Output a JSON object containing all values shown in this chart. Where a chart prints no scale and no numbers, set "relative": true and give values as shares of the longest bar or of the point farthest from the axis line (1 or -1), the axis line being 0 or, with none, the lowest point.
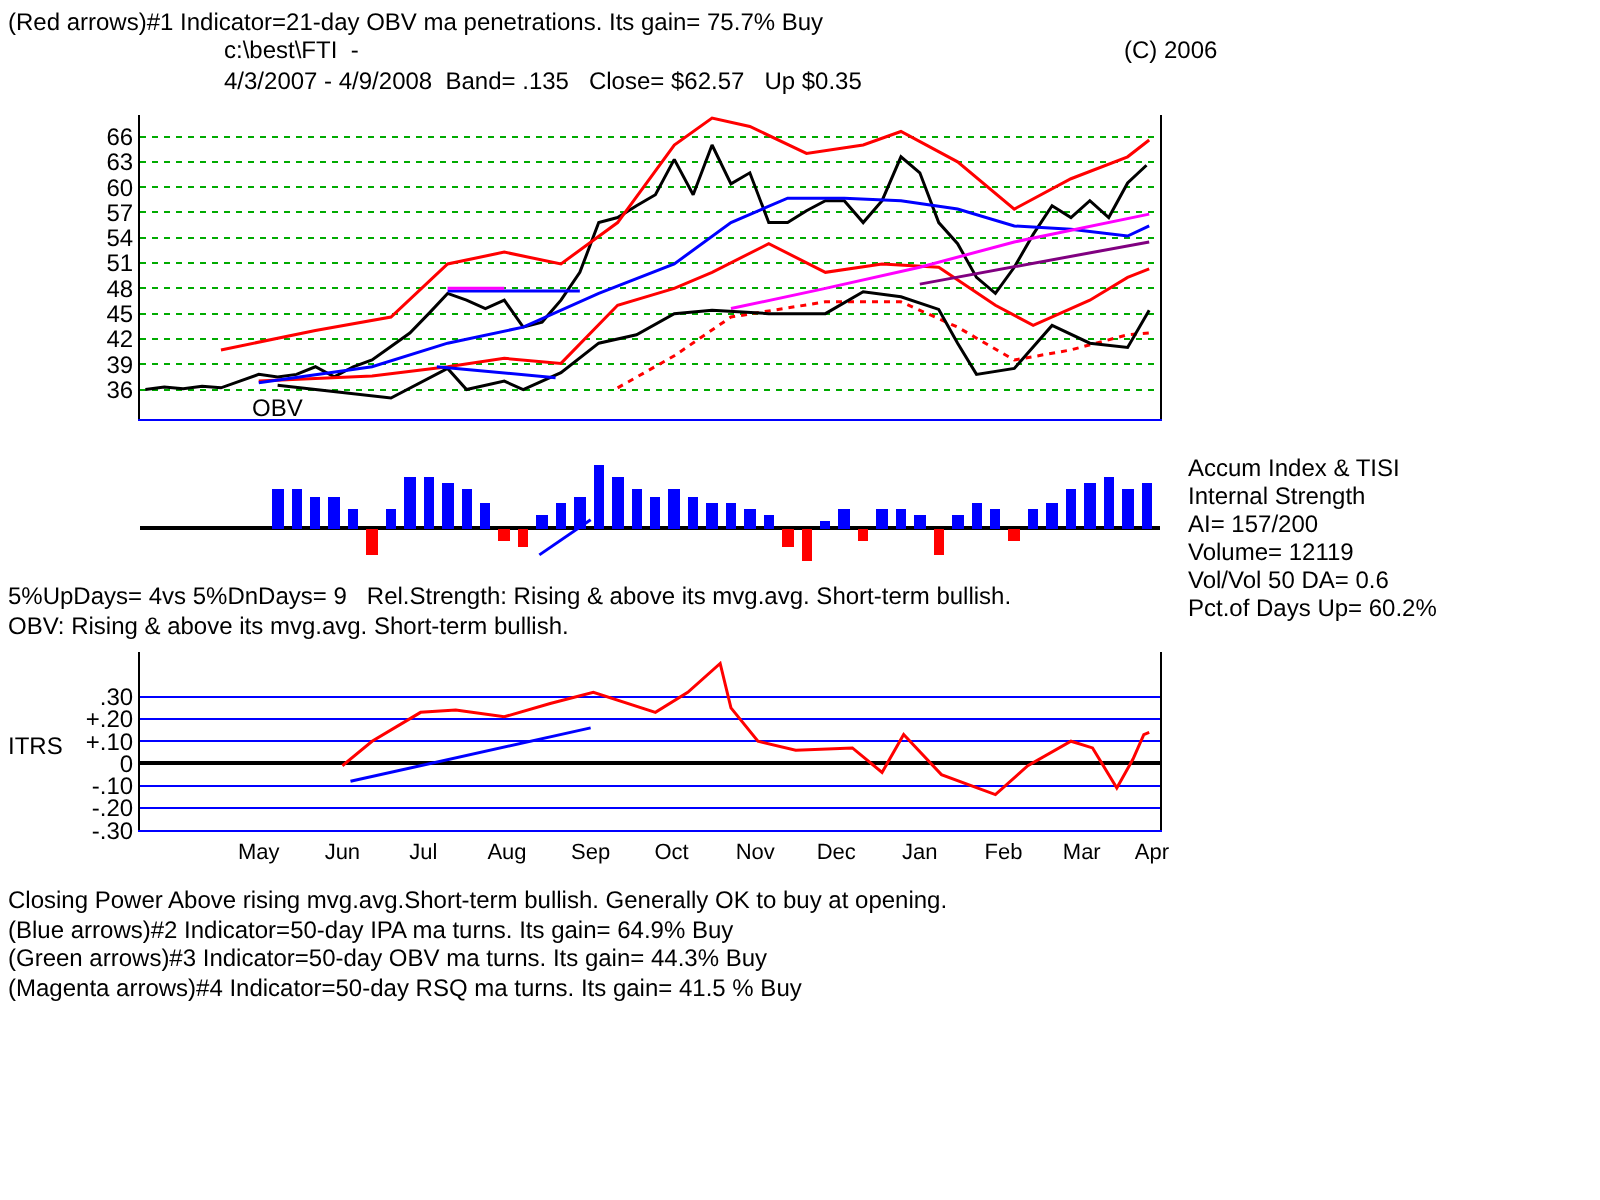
{
  "chart_data": [
    {
      "type": "line",
      "title": "(Red arrows)#1 Indicator=21-day OBV ma penetrations. Its gain= 75.7% Buy",
      "subtitle": "c:\\best\\FTI  -\n4/3/2007 - 4/9/2008  Band= .135   Close= $62.57   Up $0.35",
      "annotations": [
        "(C) 2006"
      ],
      "x": [
        "2007-04-03",
        "2007-04-10",
        "2007-04-17",
        "2007-04-24",
        "2007-05-01",
        "2007-05-08",
        "2007-05-15",
        "2007-05-22",
        "2007-05-29",
        "2007-06-05",
        "2007-06-12",
        "2007-06-19",
        "2007-06-26",
        "2007-07-03",
        "2007-07-10",
        "2007-07-17",
        "2007-07-24",
        "2007-07-31",
        "2007-08-07",
        "2007-08-14",
        "2007-08-21",
        "2007-08-28",
        "2007-09-04",
        "2007-09-11",
        "2007-09-18",
        "2007-09-25",
        "2007-10-02",
        "2007-10-09",
        "2007-10-16",
        "2007-10-23",
        "2007-10-30",
        "2007-11-06",
        "2007-11-13",
        "2007-11-20",
        "2007-11-27",
        "2007-12-04",
        "2007-12-11",
        "2007-12-18",
        "2007-12-25",
        "2008-01-01",
        "2008-01-08",
        "2008-01-15",
        "2008-01-22",
        "2008-01-29",
        "2008-02-05",
        "2008-02-12",
        "2008-02-19",
        "2008-02-26",
        "2008-03-04",
        "2008-03-11",
        "2008-03-18",
        "2008-03-25",
        "2008-04-01",
        "2008-04-08"
      ],
      "xlim": [
        "2007-04-01",
        "2008-04-13"
      ],
      "ylim": [
        32.5,
        68.6
      ],
      "yticks": [
        36,
        39,
        42,
        45,
        48,
        51,
        54,
        57,
        60,
        63,
        66
      ],
      "grid": "y",
      "tick_labels": "y",
      "series": [
        {
          "color": "#000000",
          "values": [
            36.0,
            36.3,
            36.1,
            36.4,
            36.2,
            37.0,
            37.8,
            37.5,
            37.8,
            38.7,
            37.5,
            38.7,
            39.5,
            41.1,
            42.7,
            45.0,
            47.4,
            46.6,
            45.6,
            46.6,
            43.4,
            44.0,
            46.6,
            49.9,
            55.8,
            56.4,
            57.8,
            59.1,
            63.3,
            59.1,
            65.0,
            60.4,
            61.7,
            55.8,
            55.8,
            57.2,
            58.4,
            58.4,
            55.8,
            58.4,
            63.6,
            61.7,
            55.8,
            53.3,
            49.3,
            47.4,
            50.5,
            54.4,
            57.8,
            56.4,
            58.4,
            56.4,
            60.5,
            62.6
          ]
        },
        {
          "color": "#ff0000",
          "x": [
            "2007-05-01",
            "2007-06-05",
            "2007-07-03",
            "2007-07-24",
            "2007-08-14",
            "2007-09-04",
            "2007-09-25",
            "2007-10-16",
            "2007-10-30",
            "2007-11-13",
            "2007-12-04",
            "2007-12-25",
            "2008-01-08",
            "2008-01-29",
            "2008-02-19",
            "2008-03-11",
            "2008-04-01",
            "2008-04-09"
          ],
          "values": [
            40.7,
            43,
            44.6,
            50.9,
            52.3,
            50.9,
            55.8,
            65,
            68.2,
            67.2,
            64,
            65,
            66.6,
            63,
            57.4,
            61,
            63.6,
            65.6
          ]
        },
        {
          "color": "#ff0000",
          "x": [
            "2007-05-15",
            "2007-06-26",
            "2007-07-24",
            "2007-08-14",
            "2007-09-04",
            "2007-09-25",
            "2007-10-16",
            "2007-10-30",
            "2007-11-20",
            "2007-12-11",
            "2008-01-01",
            "2008-01-22",
            "2008-02-12",
            "2008-02-26",
            "2008-03-18",
            "2008-04-01",
            "2008-04-09"
          ],
          "values": [
            37,
            37.6,
            38.7,
            39.7,
            39.1,
            46,
            48,
            49.9,
            53.3,
            49.9,
            50.9,
            50.5,
            46,
            43.6,
            46.6,
            49.3,
            50.3
          ]
        },
        {
          "color": "#0000ff",
          "x": [
            "2007-05-15",
            "2007-06-26",
            "2007-07-24",
            "2007-08-21",
            "2007-09-18",
            "2007-10-16",
            "2007-11-06",
            "2007-11-27",
            "2007-12-18",
            "2008-01-08",
            "2008-01-29",
            "2008-02-19",
            "2008-03-11",
            "2008-04-01",
            "2008-04-09"
          ],
          "values": [
            36.8,
            38.7,
            41.5,
            43.4,
            47.4,
            50.9,
            55.8,
            58.7,
            58.7,
            58.4,
            57.4,
            55.4,
            55,
            54.2,
            55.4
          ]
        },
        {
          "color": "#ff00ff",
          "x": [
            "2007-11-06",
            "2007-12-11",
            "2008-01-15",
            "2008-02-19",
            "2008-04-09"
          ],
          "values": [
            45.6,
            48,
            50.5,
            53.5,
            56.8
          ]
        },
        {
          "color": "#800080",
          "x": [
            "2008-01-15",
            "2008-04-09"
          ],
          "values": [
            48.5,
            53.5
          ]
        },
        {
          "color": "#ff0000",
          "line_style": "dotted",
          "x": [
            "2007-09-25",
            "2007-10-16",
            "2007-11-06",
            "2007-12-11",
            "2008-01-08",
            "2008-01-29",
            "2008-02-19",
            "2008-03-11",
            "2008-04-01",
            "2008-04-09"
          ],
          "values": [
            36.2,
            40,
            44.6,
            46.4,
            46.4,
            43.4,
            39.5,
            40.7,
            42.5,
            42.7
          ]
        },
        {
          "name": "OBV",
          "color": "#000000",
          "x": [
            "2007-05-22",
            "2007-07-03",
            "2007-07-24",
            "2007-07-31",
            "2007-08-14",
            "2007-08-21",
            "2007-09-04",
            "2007-09-18",
            "2007-10-02",
            "2007-10-16",
            "2007-10-30",
            "2007-11-20",
            "2007-12-11",
            "2007-12-25",
            "2008-01-08",
            "2008-01-22",
            "2008-01-29",
            "2008-02-05",
            "2008-02-19",
            "2008-03-04",
            "2008-03-18",
            "2008-04-01",
            "2008-04-09"
          ],
          "values": [
            36.5,
            35,
            38.5,
            36,
            37,
            36,
            38,
            41.5,
            42.5,
            45,
            45.4,
            45,
            45,
            47.6,
            47,
            45.5,
            41.5,
            37.8,
            38.5,
            43.6,
            41.5,
            41,
            45.4
          ]
        },
        {
          "color": "#0000ff",
          "x": [
            "2007-07-24",
            "2007-09-11"
          ],
          "values": [
            47.7,
            47.7
          ]
        },
        {
          "color": "#ff00ff",
          "x": [
            "2007-07-24",
            "2007-08-14"
          ],
          "values": [
            48,
            48
          ]
        },
        {
          "color": "#0000ff",
          "x": [
            "2007-07-20",
            "2007-09-02"
          ],
          "values": [
            38.7,
            37.4
          ]
        }
      ]
    },
    {
      "type": "bar",
      "ylabel": "Accum Index & TISI",
      "relative": true,
      "annotations": [
        "Internal Strength",
        "AI= 157/200",
        "Volume= 12119",
        "Vol/Vol 50 DA= 0.6",
        "Pct.of Days Up= 60.2%"
      ],
      "xlim": [
        "2007-04-01",
        "2008-04-13"
      ],
      "tick_labels": false,
      "x": [
        "2007-05-22",
        "2007-05-29",
        "2007-06-05",
        "2007-06-12",
        "2007-06-19",
        "2007-06-26",
        "2007-07-03",
        "2007-07-10",
        "2007-07-17",
        "2007-07-24",
        "2007-07-31",
        "2007-08-07",
        "2007-08-14",
        "2007-08-21",
        "2007-08-28",
        "2007-09-04",
        "2007-09-11",
        "2007-09-18",
        "2007-09-25",
        "2007-10-02",
        "2007-10-09",
        "2007-10-16",
        "2007-10-23",
        "2007-10-30",
        "2007-11-06",
        "2007-11-13",
        "2007-11-20",
        "2007-11-27",
        "2007-12-04",
        "2007-12-11",
        "2007-12-18",
        "2007-12-25",
        "2008-01-01",
        "2008-01-08",
        "2008-01-15",
        "2008-01-22",
        "2008-01-29",
        "2008-02-05",
        "2008-02-12",
        "2008-02-19",
        "2008-02-26",
        "2008-03-04",
        "2008-03-11",
        "2008-03-18",
        "2008-03-25",
        "2008-04-01",
        "2008-04-08"
      ],
      "series": [
        {
          "values": [
            0.6,
            0.6,
            0.5,
            0.5,
            0.3,
            -0.4,
            0.3,
            0.8,
            0.8,
            0.7,
            0.6,
            0.4,
            -0.2,
            -0.3,
            0.2,
            0.4,
            0.5,
            1.0,
            0.8,
            0.6,
            0.5,
            0.6,
            0.5,
            0.4,
            0.4,
            0.3,
            0.2,
            -0.3,
            -0.5,
            0.1,
            0.3,
            -0.2,
            0.3,
            0.3,
            0.2,
            -0.4,
            0.2,
            0.4,
            0.3,
            -0.2,
            0.3,
            0.4,
            0.6,
            0.7,
            0.8,
            0.6,
            0.7
          ],
          "colors": [
            "#0000ff",
            "#0000ff",
            "#0000ff",
            "#0000ff",
            "#0000ff",
            "#ff0000",
            "#0000ff",
            "#0000ff",
            "#0000ff",
            "#0000ff",
            "#0000ff",
            "#0000ff",
            "#ff0000",
            "#ff0000",
            "#0000ff",
            "#0000ff",
            "#0000ff",
            "#0000ff",
            "#0000ff",
            "#0000ff",
            "#0000ff",
            "#0000ff",
            "#0000ff",
            "#0000ff",
            "#0000ff",
            "#0000ff",
            "#0000ff",
            "#ff0000",
            "#ff0000",
            "#0000ff",
            "#0000ff",
            "#ff0000",
            "#0000ff",
            "#0000ff",
            "#0000ff",
            "#ff0000",
            "#0000ff",
            "#0000ff",
            "#0000ff",
            "#ff0000",
            "#0000ff",
            "#0000ff",
            "#0000ff",
            "#0000ff",
            "#0000ff",
            "#0000ff",
            "#0000ff"
          ]
        },
        {
          "type": "line",
          "color": "#0000ff",
          "x": [
            "2007-08-27",
            "2007-09-15"
          ],
          "values": [
            -0.42,
            0.13
          ]
        }
      ]
    },
    {
      "type": "line",
      "ylabel": "ITRS",
      "annotations": [
        "5%UpDays= 4vs 5%DnDays= 9   Rel.Strength: Rising & above its mvg.avg. Short-term bullish.",
        "OBV: Rising & above its mvg.avg. Short-term bullish.",
        "Closing Power Above rising mvg.avg.Short-term bullish. Generally OK to buy at opening.",
        "(Blue arrows)#2 Indicator=50-day IPA ma turns. Its gain= 64.9% Buy",
        "(Green arrows)#3 Indicator=50-day OBV ma turns. Its gain= 44.3% Buy",
        "(Magenta arrows)#4 Indicator=50-day RSQ ma turns. Its gain= 41.5 % Buy"
      ],
      "xlim": [
        "2007-04-01",
        "2008-04-13"
      ],
      "ylim": [
        -0.3,
        0.5
      ],
      "grid": "y",
      "xticks": [
        {
          "value": "2007-05-15",
          "label": "May"
        },
        {
          "value": "2007-06-15",
          "label": "Jun"
        },
        {
          "value": "2007-07-15",
          "label": "Jul"
        },
        {
          "value": "2007-08-15",
          "label": "Aug"
        },
        {
          "value": "2007-09-15",
          "label": "Sep"
        },
        {
          "value": "2007-10-15",
          "label": "Oct"
        },
        {
          "value": "2007-11-15",
          "label": "Nov"
        },
        {
          "value": "2007-12-15",
          "label": "Dec"
        },
        {
          "value": "2008-01-15",
          "label": "Jan"
        },
        {
          "value": "2008-02-15",
          "label": "Feb"
        },
        {
          "value": "2008-03-15",
          "label": "Mar"
        },
        {
          "value": "2008-04-10",
          "label": "Apr"
        }
      ],
      "yticks": [
        {
          "value": 0.3,
          "label": ".30"
        },
        {
          "value": 0.2,
          "label": "+.20"
        },
        {
          "value": 0.1,
          "label": "+.10"
        },
        {
          "value": 0,
          "label": "0"
        },
        {
          "value": -0.1,
          "label": "-.10"
        },
        {
          "value": -0.2,
          "label": "-.20"
        },
        {
          "value": -0.3,
          "label": "-.30"
        }
      ],
      "series": [
        {
          "color": "#ff0000",
          "x": [
            "2007-06-15",
            "2007-06-26",
            "2007-07-14",
            "2007-07-27",
            "2007-08-14",
            "2007-08-31",
            "2007-09-16",
            "2007-10-09",
            "2007-10-21",
            "2007-11-02",
            "2007-11-06",
            "2007-11-16",
            "2007-11-30",
            "2007-12-21",
            "2008-01-01",
            "2008-01-09",
            "2008-01-23",
            "2008-02-12",
            "2008-02-24",
            "2008-03-11",
            "2008-03-19",
            "2008-03-28",
            "2008-04-03",
            "2008-04-07",
            "2008-04-09"
          ],
          "values": [
            -0.01,
            0.1,
            0.23,
            0.24,
            0.21,
            0.27,
            0.32,
            0.23,
            0.32,
            0.45,
            0.25,
            0.1,
            0.06,
            0.07,
            -0.04,
            0.13,
            -0.05,
            -0.14,
            -0.01,
            0.1,
            0.07,
            -0.11,
            0.02,
            0.13,
            0.14
          ]
        },
        {
          "color": "#0000ff",
          "x": [
            "2007-06-18",
            "2007-09-15"
          ],
          "values": [
            -0.08,
            0.16
          ]
        }
      ]
    }
  ]
}
